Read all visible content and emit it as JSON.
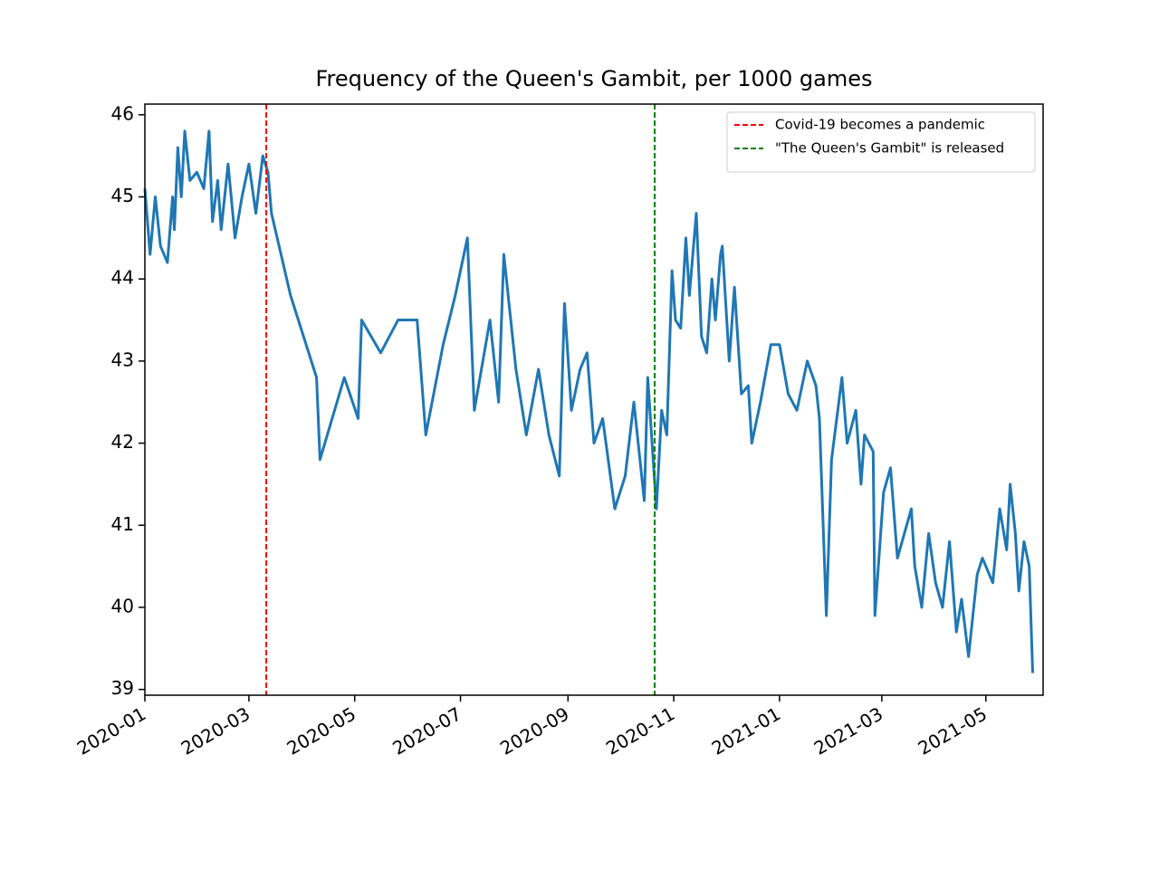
{
  "chart_data": {
    "type": "line",
    "title": "Frequency of the Queen's Gambit, per 1000 games",
    "x": [
      0,
      3,
      6,
      9,
      13,
      16,
      17,
      19,
      21,
      23,
      26,
      30,
      34,
      37,
      39,
      42,
      44,
      48,
      52,
      56,
      60,
      64,
      68,
      71,
      73,
      84,
      99,
      101,
      115,
      123,
      125,
      136,
      146,
      157,
      162,
      172,
      179,
      186,
      190,
      199,
      204,
      207,
      214,
      220,
      227,
      233,
      239,
      242,
      246,
      251,
      255,
      259,
      264,
      271,
      277,
      282,
      288,
      290,
      295,
      298,
      301,
      304,
      306,
      309,
      312,
      314,
      316,
      318,
      321,
      324,
      327,
      329,
      332,
      333,
      337,
      340,
      344,
      348,
      350,
      355,
      361,
      366,
      371,
      376,
      382,
      387,
      389,
      393,
      396,
      402,
      405,
      410,
      413,
      415,
      420,
      421,
      426,
      430,
      434,
      438,
      442,
      444,
      448,
      452,
      456,
      460,
      464,
      468,
      471,
      475,
      480,
      483,
      489,
      493,
      497,
      499,
      502,
      504,
      507,
      510,
      512
    ],
    "values": [
      45.1,
      44.3,
      45.0,
      44.4,
      44.2,
      45.0,
      44.6,
      45.6,
      45.0,
      45.8,
      45.2,
      45.3,
      45.1,
      45.8,
      44.7,
      45.2,
      44.6,
      45.4,
      44.5,
      45.0,
      45.4,
      44.8,
      45.5,
      45.3,
      44.8,
      43.8,
      42.8,
      41.8,
      42.8,
      42.3,
      43.5,
      43.1,
      43.5,
      43.5,
      42.1,
      43.2,
      43.8,
      44.5,
      42.4,
      43.5,
      42.5,
      44.3,
      42.9,
      42.1,
      42.9,
      42.1,
      41.6,
      43.7,
      42.4,
      42.9,
      43.1,
      42.0,
      42.3,
      41.2,
      41.6,
      42.5,
      41.3,
      42.8,
      41.2,
      42.4,
      42.1,
      44.1,
      43.5,
      43.4,
      44.5,
      43.8,
      44.3,
      44.8,
      43.3,
      43.1,
      44.0,
      43.5,
      44.3,
      44.4,
      43.0,
      43.9,
      42.6,
      42.7,
      42.0,
      42.5,
      43.2,
      43.2,
      42.6,
      42.4,
      43.0,
      42.7,
      42.3,
      39.9,
      41.8,
      42.8,
      42.0,
      42.4,
      41.5,
      42.1,
      41.9,
      39.9,
      41.4,
      41.7,
      40.6,
      40.9,
      41.2,
      40.5,
      40.0,
      40.9,
      40.3,
      40.0,
      40.8,
      39.7,
      40.1,
      39.4,
      40.4,
      40.6,
      40.3,
      41.2,
      40.7,
      41.5,
      40.9,
      40.2,
      40.8,
      40.5,
      39.2
    ],
    "color": "#1f77b4",
    "vlines": [
      {
        "x": 70,
        "name": "Covid-19 becomes a pandemic",
        "color": "red"
      },
      {
        "x": 294,
        "name": "\"The Queen's Gambit\" is released",
        "color": "green"
      }
    ],
    "xlim": [
      0,
      518
    ],
    "xticks": [
      {
        "value": 0,
        "label": "2020-01"
      },
      {
        "value": 60,
        "label": "2020-03"
      },
      {
        "value": 121,
        "label": "2020-05"
      },
      {
        "value": 182,
        "label": "2020-07"
      },
      {
        "value": 244,
        "label": "2020-09"
      },
      {
        "value": 305,
        "label": "2020-11"
      },
      {
        "value": 366,
        "label": "2021-01"
      },
      {
        "value": 425,
        "label": "2021-03"
      },
      {
        "value": 485,
        "label": "2021-05"
      }
    ],
    "ylim": [
      38.93,
      46.13
    ],
    "yticks": [
      39,
      40,
      41,
      42,
      43,
      44,
      45,
      46
    ],
    "legend": "upper right"
  }
}
